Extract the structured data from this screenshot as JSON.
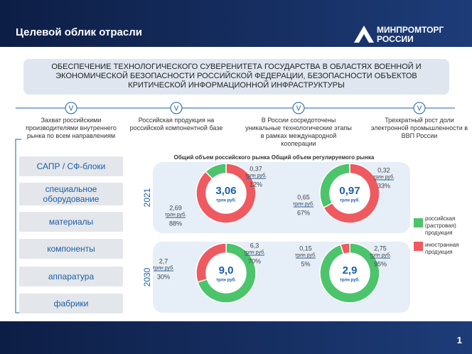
{
  "header": {
    "title": "Целевой облик отрасли",
    "logo": [
      "МИНПРОМТОРГ",
      "РОССИИ"
    ]
  },
  "banner": "ОБЕСПЕЧЕНИЕ ТЕХНОЛОГИЧЕСКОГО СУВЕРЕНИТЕТА ГОСУДАРСТВА В ОБЛАСТЯХ ВОЕННОЙ И ЭКОНОМИЧЕСКОЙ БЕЗОПАСНОСТИ РОССИЙСКОЙ ФЕДЕРАЦИИ, БЕЗОПАСНОСТИ ОБЪЕКТОВ КРИТИЧЕСКОЙ ИНФОРМАЦИОННОЙ ИНФРАСТРУКТУРЫ",
  "goals": [
    {
      "icon": "V",
      "text": "Захват российскими производителями внутреннего рынка по всем направлениям"
    },
    {
      "icon": "V",
      "text": "Российская продукция на российской компонентной базе"
    },
    {
      "icon": "V",
      "text": "В России сосредоточены уникальные технологические этапы в рамках международной кооперации"
    },
    {
      "icon": "V",
      "text": "Трехкратный рост доли электронной промышленности в ВВП России"
    }
  ],
  "segments_list": [
    "САПР / СФ-блоки",
    "специальное оборудование",
    "материалы",
    "компоненты",
    "аппаратура",
    "фабрики"
  ],
  "column_titles": [
    "Общий объем российского рынка",
    "Общий объем регулируемого рынка"
  ],
  "years": [
    "2021",
    "2030"
  ],
  "donuts": [
    {
      "total": "3,06",
      "unit": "трлн руб.",
      "segments": [
        {
          "color": "#ef5a60",
          "value_label": "2,69",
          "unit": "трлн руб.",
          "percent": 88,
          "percent_label": "88%"
        },
        {
          "color": "#4cc46b",
          "value_label": "0,37",
          "unit": "трлн руб.",
          "percent": 12,
          "percent_label": "12%"
        }
      ]
    },
    {
      "total": "0,97",
      "unit": "трлн руб.",
      "segments": [
        {
          "color": "#ef5a60",
          "value_label": "0,65",
          "unit": "трлн руб.",
          "percent": 67,
          "percent_label": "67%"
        },
        {
          "color": "#4cc46b",
          "value_label": "0,32",
          "unit": "трлн руб.",
          "percent": 33,
          "percent_label": "33%"
        }
      ]
    },
    {
      "total": "9,0",
      "unit": "трлн руб.",
      "segments": [
        {
          "color": "#4cc46b",
          "value_label": "6,3",
          "unit": "трлн руб.",
          "percent": 70,
          "percent_label": "70%"
        },
        {
          "color": "#ef5a60",
          "value_label": "2,7",
          "unit": "трлн руб.",
          "percent": 30,
          "percent_label": "30%"
        }
      ]
    },
    {
      "total": "2,9",
      "unit": "трлн руб.",
      "segments": [
        {
          "color": "#4cc46b",
          "value_label": "2,75",
          "unit": "трлн руб.",
          "percent": 95,
          "percent_label": "95%"
        },
        {
          "color": "#ef5a60",
          "value_label": "0,15",
          "unit": "трлн руб.",
          "percent": 5,
          "percent_label": "5%"
        }
      ]
    }
  ],
  "legend": [
    {
      "color": "#4cc46b",
      "text": "российская (растровая) продукция"
    },
    {
      "color": "#ef5a60",
      "text": "иностранная продукция"
    }
  ],
  "page_number": "1"
}
